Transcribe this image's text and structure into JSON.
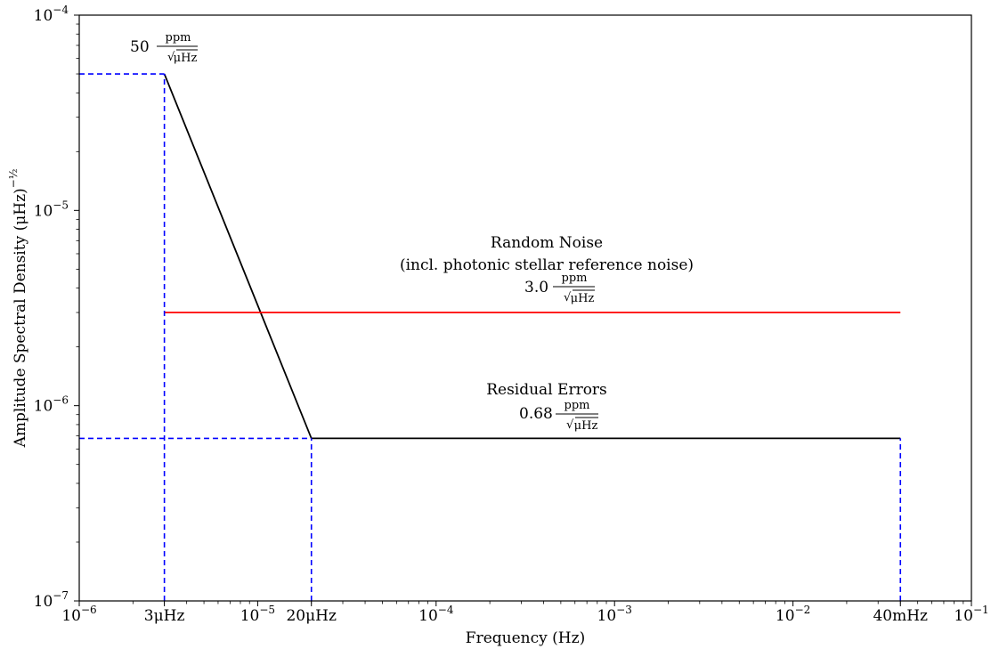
{
  "chart_data": {
    "type": "line",
    "xscale": "log",
    "yscale": "log",
    "xlim": [
      1e-06,
      0.1
    ],
    "ylim": [
      1e-07,
      0.0001
    ],
    "xlabel": "Frequency (Hz)",
    "ylabel": "Amplitude Spectral Density (μHz)",
    "ylabel_exponent": "−½",
    "grid": false,
    "x_ticks": [
      {
        "value": 1e-06,
        "base": "10",
        "exp": "−6"
      },
      {
        "value": 3e-06,
        "text": "3μHz"
      },
      {
        "value": 1e-05,
        "base": "10",
        "exp": "−5"
      },
      {
        "value": 2e-05,
        "text": "20μHz"
      },
      {
        "value": 0.0001,
        "base": "10",
        "exp": "−4"
      },
      {
        "value": 0.001,
        "base": "10",
        "exp": "−3"
      },
      {
        "value": 0.01,
        "base": "10",
        "exp": "−2"
      },
      {
        "value": 0.04,
        "text": "40mHz"
      },
      {
        "value": 0.1,
        "base": "10",
        "exp": "−1"
      }
    ],
    "y_ticks": [
      {
        "value": 1e-07,
        "base": "10",
        "exp": "−7"
      },
      {
        "value": 1e-06,
        "base": "10",
        "exp": "−6"
      },
      {
        "value": 1e-05,
        "base": "10",
        "exp": "−5"
      },
      {
        "value": 0.0001,
        "base": "10",
        "exp": "−4"
      }
    ],
    "series": [
      {
        "key": "residual",
        "color": "#000000",
        "style": "solid",
        "x": [
          3e-06,
          2e-05,
          0.04
        ],
        "y": [
          5e-05,
          6.8e-07,
          6.8e-07
        ]
      },
      {
        "key": "random",
        "color": "#ff0000",
        "style": "solid",
        "x": [
          3e-06,
          0.04
        ],
        "y": [
          3e-06,
          3e-06
        ]
      },
      {
        "key": "ref-h50",
        "color": "#0000ff",
        "style": "dashed",
        "x": [
          1e-06,
          3e-06
        ],
        "y": [
          5e-05,
          5e-05
        ]
      },
      {
        "key": "ref-v3u",
        "color": "#0000ff",
        "style": "dashed",
        "x": [
          3e-06,
          3e-06
        ],
        "y": [
          1e-07,
          5e-05
        ]
      },
      {
        "key": "ref-h068",
        "color": "#0000ff",
        "style": "dashed",
        "x": [
          1e-06,
          2e-05
        ],
        "y": [
          6.8e-07,
          6.8e-07
        ]
      },
      {
        "key": "ref-v20u",
        "color": "#0000ff",
        "style": "dashed",
        "x": [
          2e-05,
          2e-05
        ],
        "y": [
          1e-07,
          6.8e-07
        ]
      },
      {
        "key": "ref-v40m",
        "color": "#0000ff",
        "style": "dashed",
        "x": [
          0.04,
          0.04
        ],
        "y": [
          1e-07,
          6.8e-07
        ]
      }
    ],
    "annotations": {
      "peak": {
        "value": "50",
        "num": "ppm",
        "den": "μHz"
      },
      "random_noise": {
        "title": "Random Noise",
        "subtitle": "(incl. photonic stellar reference noise)",
        "value": "3.0",
        "num": "ppm",
        "den": "μHz"
      },
      "residual": {
        "title": "Residual Errors",
        "value": "0.68",
        "num": "ppm",
        "den": "μHz"
      }
    }
  }
}
